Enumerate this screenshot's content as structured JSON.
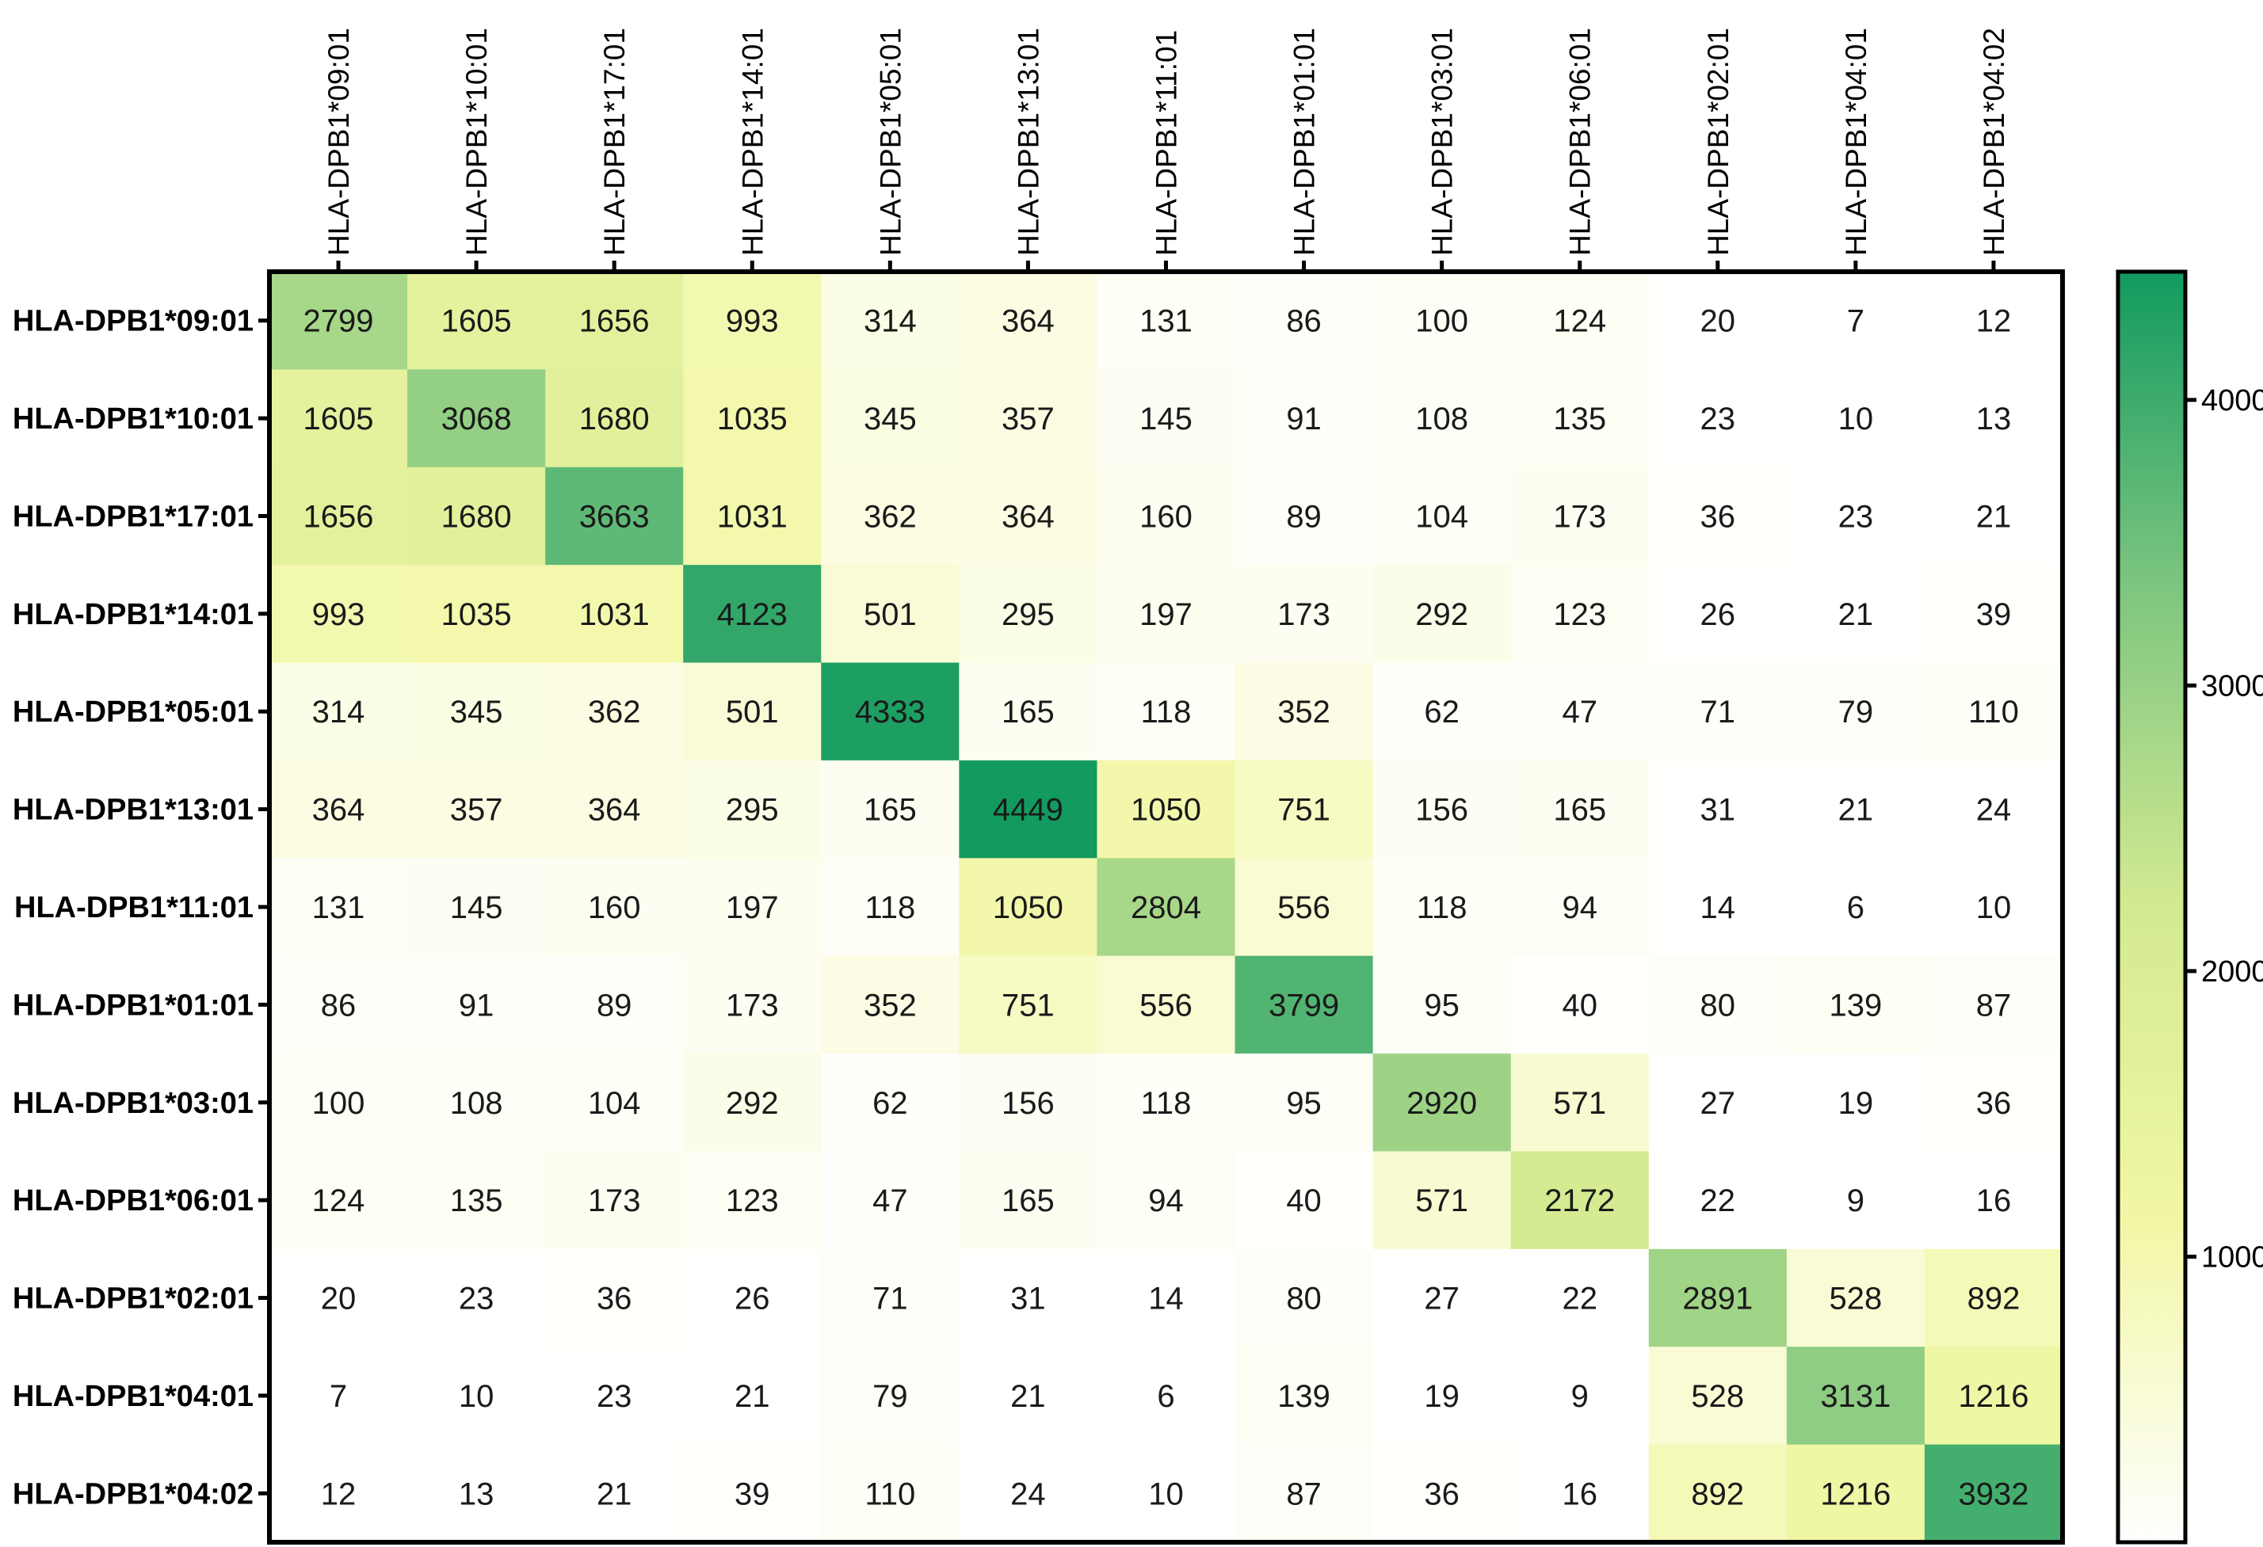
{
  "chart_data": {
    "type": "heatmap",
    "rows": [
      "HLA-DPB1*09:01",
      "HLA-DPB1*10:01",
      "HLA-DPB1*17:01",
      "HLA-DPB1*14:01",
      "HLA-DPB1*05:01",
      "HLA-DPB1*13:01",
      "HLA-DPB1*11:01",
      "HLA-DPB1*01:01",
      "HLA-DPB1*03:01",
      "HLA-DPB1*06:01",
      "HLA-DPB1*02:01",
      "HLA-DPB1*04:01",
      "HLA-DPB1*04:02"
    ],
    "columns": [
      "HLA-DPB1*09:01",
      "HLA-DPB1*10:01",
      "HLA-DPB1*17:01",
      "HLA-DPB1*14:01",
      "HLA-DPB1*05:01",
      "HLA-DPB1*13:01",
      "HLA-DPB1*11:01",
      "HLA-DPB1*01:01",
      "HLA-DPB1*03:01",
      "HLA-DPB1*06:01",
      "HLA-DPB1*02:01",
      "HLA-DPB1*04:01",
      "HLA-DPB1*04:02"
    ],
    "values": [
      [
        2799,
        1605,
        1656,
        993,
        314,
        364,
        131,
        86,
        100,
        124,
        20,
        7,
        12
      ],
      [
        1605,
        3068,
        1680,
        1035,
        345,
        357,
        145,
        91,
        108,
        135,
        23,
        10,
        13
      ],
      [
        1656,
        1680,
        3663,
        1031,
        362,
        364,
        160,
        89,
        104,
        173,
        36,
        23,
        21
      ],
      [
        993,
        1035,
        1031,
        4123,
        501,
        295,
        197,
        173,
        292,
        123,
        26,
        21,
        39
      ],
      [
        314,
        345,
        362,
        501,
        4333,
        165,
        118,
        352,
        62,
        47,
        71,
        79,
        110
      ],
      [
        364,
        357,
        364,
        295,
        165,
        4449,
        1050,
        751,
        156,
        165,
        31,
        21,
        24
      ],
      [
        131,
        145,
        160,
        197,
        118,
        1050,
        2804,
        556,
        118,
        94,
        14,
        6,
        10
      ],
      [
        86,
        91,
        89,
        173,
        352,
        751,
        556,
        3799,
        95,
        40,
        80,
        139,
        87
      ],
      [
        100,
        108,
        104,
        292,
        62,
        156,
        118,
        95,
        2920,
        571,
        27,
        19,
        36
      ],
      [
        124,
        135,
        173,
        123,
        47,
        165,
        94,
        40,
        571,
        2172,
        22,
        9,
        16
      ],
      [
        20,
        23,
        36,
        26,
        71,
        31,
        14,
        80,
        27,
        22,
        2891,
        528,
        892
      ],
      [
        7,
        10,
        23,
        21,
        79,
        21,
        6,
        139,
        19,
        9,
        528,
        3131,
        1216
      ],
      [
        12,
        13,
        21,
        39,
        110,
        24,
        10,
        87,
        36,
        16,
        892,
        1216,
        3932
      ]
    ],
    "colorbar": {
      "min": 0,
      "max": 4449,
      "ticks": [
        1000,
        2000,
        3000,
        4000
      ],
      "colors": [
        "#ffffff",
        "#f2f7a6",
        "#d3ea91",
        "#7ec680",
        "#129a5f"
      ]
    }
  }
}
